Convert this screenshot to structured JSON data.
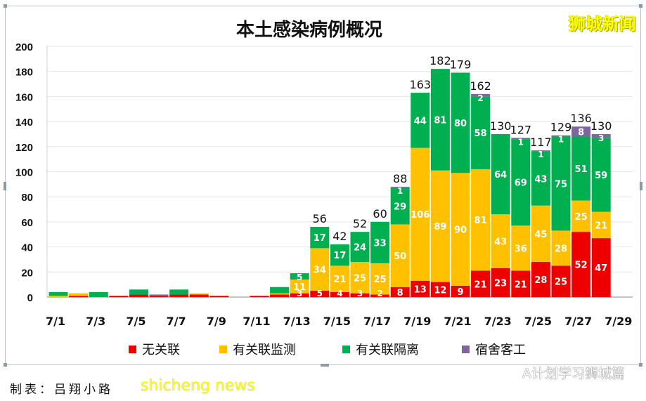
{
  "chart_data": {
    "type": "bar",
    "stacked": true,
    "title": "本土感染病例概况",
    "categories": [
      "7/1",
      "7/2",
      "7/3",
      "7/4",
      "7/5",
      "7/6",
      "7/7",
      "7/8",
      "7/9",
      "7/10",
      "7/11",
      "7/12",
      "7/13",
      "7/14",
      "7/15",
      "7/16",
      "7/17",
      "7/18",
      "7/19",
      "7/20",
      "7/21",
      "7/22",
      "7/23",
      "7/24",
      "7/25",
      "7/26",
      "7/27",
      "7/28"
    ],
    "x_tick_labels": [
      "7/1",
      "7/3",
      "7/5",
      "7/7",
      "7/9",
      "7/11",
      "7/13",
      "7/15",
      "7/17",
      "7/19",
      "7/21",
      "7/23",
      "7/25",
      "7/27",
      "7/29"
    ],
    "ylim": [
      0,
      200
    ],
    "y_ticks": [
      0,
      20,
      40,
      60,
      80,
      100,
      120,
      140,
      160,
      180,
      200
    ],
    "grid": true,
    "legend_position": "bottom",
    "series": [
      {
        "name": "无关联",
        "color": "#ee0000",
        "values": [
          0,
          1,
          0,
          1,
          2,
          1,
          2,
          2,
          1,
          0,
          1,
          2,
          3,
          5,
          4,
          3,
          2,
          8,
          13,
          12,
          9,
          21,
          23,
          21,
          28,
          25,
          52,
          47
        ]
      },
      {
        "name": "有关联监测",
        "color": "#ffc000",
        "values": [
          1,
          2,
          0,
          0,
          0,
          0,
          0,
          1,
          0,
          0,
          0,
          1,
          11,
          34,
          21,
          25,
          25,
          50,
          106,
          89,
          90,
          81,
          43,
          36,
          45,
          28,
          25,
          21
        ]
      },
      {
        "name": "有关联隔离",
        "color": "#00b050",
        "values": [
          3,
          0,
          4,
          0,
          4,
          0,
          4,
          0,
          0,
          0,
          0,
          5,
          5,
          17,
          17,
          24,
          33,
          29,
          44,
          81,
          80,
          58,
          64,
          69,
          43,
          75,
          51,
          59
        ]
      },
      {
        "name": "宿舍客工",
        "color": "#8064a2",
        "values": [
          0,
          0,
          0,
          0,
          0,
          1,
          0,
          0,
          0,
          0,
          0,
          0,
          0,
          0,
          0,
          0,
          0,
          1,
          0,
          0,
          0,
          2,
          0,
          1,
          1,
          1,
          8,
          3
        ]
      }
    ],
    "totals": [
      null,
      null,
      null,
      null,
      null,
      null,
      null,
      null,
      null,
      null,
      null,
      null,
      null,
      56,
      42,
      52,
      60,
      88,
      163,
      182,
      179,
      162,
      130,
      127,
      117,
      129,
      136,
      130
    ]
  },
  "logo_text": "狮城新闻",
  "credit": "制表：吕翔小路",
  "watermark": "shicheng news",
  "wechat_source": "A计划学习狮城篇"
}
